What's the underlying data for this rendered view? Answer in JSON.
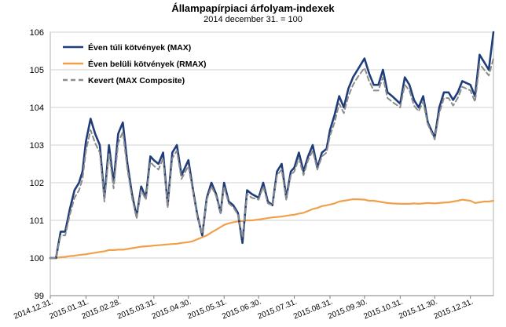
{
  "chart_data": {
    "type": "line",
    "title": "Állampapírpiaci árfolyam-indexek",
    "subtitle": "2014 december 31. = 100",
    "xlabel": "",
    "ylabel": "",
    "ylim": [
      99,
      106
    ],
    "y_ticks": [
      "99",
      "100",
      "101",
      "102",
      "103",
      "104",
      "105",
      "106"
    ],
    "x_ticks": [
      "2014.12.31.",
      "2015.01.31.",
      "2015.02.28.",
      "2015.03.31.",
      "2015.04.30.",
      "2015.05.31.",
      "2015.06.30.",
      "2015.07.31.",
      "2015.08.31.",
      "2015.09.30.",
      "2015.10.31.",
      "2015.11.30.",
      "2015.12.31."
    ],
    "grid": true,
    "legend_position": "top-left",
    "x_index": [
      "2014-12-31",
      "2015-01-05",
      "2015-01-09",
      "2015-01-13",
      "2015-01-17",
      "2015-01-21",
      "2015-01-25",
      "2015-01-28",
      "2015-01-31",
      "2015-02-04",
      "2015-02-08",
      "2015-02-12",
      "2015-02-16",
      "2015-02-20",
      "2015-02-24",
      "2015-02-28",
      "2015-03-04",
      "2015-03-08",
      "2015-03-12",
      "2015-03-16",
      "2015-03-20",
      "2015-03-24",
      "2015-03-28",
      "2015-03-31",
      "2015-04-04",
      "2015-04-08",
      "2015-04-12",
      "2015-04-16",
      "2015-04-20",
      "2015-04-24",
      "2015-04-30",
      "2015-05-04",
      "2015-05-08",
      "2015-05-12",
      "2015-05-16",
      "2015-05-20",
      "2015-05-24",
      "2015-05-28",
      "2015-05-31",
      "2015-06-04",
      "2015-06-08",
      "2015-06-12",
      "2015-06-16",
      "2015-06-20",
      "2015-06-24",
      "2015-06-30",
      "2015-07-04",
      "2015-07-08",
      "2015-07-12",
      "2015-07-16",
      "2015-07-20",
      "2015-07-24",
      "2015-07-28",
      "2015-07-31",
      "2015-08-04",
      "2015-08-08",
      "2015-08-12",
      "2015-08-16",
      "2015-08-20",
      "2015-08-24",
      "2015-08-28",
      "2015-08-31",
      "2015-09-04",
      "2015-09-08",
      "2015-09-12",
      "2015-09-16",
      "2015-09-20",
      "2015-09-24",
      "2015-09-30",
      "2015-10-04",
      "2015-10-08",
      "2015-10-12",
      "2015-10-16",
      "2015-10-20",
      "2015-10-24",
      "2015-10-31",
      "2015-11-04",
      "2015-11-08",
      "2015-11-12",
      "2015-11-16",
      "2015-11-20",
      "2015-11-24",
      "2015-11-30",
      "2015-12-04",
      "2015-12-08",
      "2015-12-12",
      "2015-12-16",
      "2015-12-20",
      "2015-12-24",
      "2015-12-31",
      "2016-01-04",
      "2016-01-08",
      "2016-01-12",
      "2016-01-16",
      "2016-01-20"
    ],
    "series": [
      {
        "name": "Éven túli kötvények (MAX)",
        "color": "#1f3d7a",
        "dash": "solid",
        "values": [
          100.0,
          100.0,
          100.7,
          100.7,
          101.3,
          101.8,
          102.0,
          102.3,
          103.1,
          103.7,
          103.3,
          103.0,
          101.6,
          103.0,
          102.0,
          103.3,
          103.6,
          102.5,
          101.7,
          101.1,
          101.9,
          101.6,
          102.7,
          102.6,
          102.5,
          102.8,
          101.4,
          102.8,
          103.0,
          102.2,
          102.6,
          101.8,
          101.1,
          100.6,
          101.6,
          102.0,
          101.7,
          101.2,
          102.0,
          101.5,
          101.4,
          101.2,
          100.4,
          101.8,
          101.7,
          101.6,
          102.0,
          101.5,
          101.4,
          102.3,
          102.5,
          101.6,
          102.3,
          102.4,
          102.8,
          102.3,
          102.7,
          103.0,
          102.4,
          102.8,
          102.9,
          103.4,
          103.8,
          104.3,
          104.0,
          104.5,
          104.8,
          105.0,
          105.3,
          104.9,
          104.6,
          104.6,
          105.0,
          104.4,
          104.3,
          104.1,
          104.8,
          104.6,
          104.2,
          104.0,
          104.3,
          103.6,
          103.2,
          104.0,
          104.4,
          104.4,
          104.2,
          104.4,
          104.7,
          104.6,
          104.3,
          105.4,
          105.2,
          105.0,
          106.0
        ]
      },
      {
        "name": "Éven belüli kötvények (RMAX)",
        "color": "#f0a04b",
        "dash": "solid",
        "values": [
          100.0,
          100.0,
          100.02,
          100.03,
          100.05,
          100.06,
          100.08,
          100.09,
          100.1,
          100.12,
          100.14,
          100.16,
          100.18,
          100.21,
          100.21,
          100.22,
          100.22,
          100.24,
          100.26,
          100.28,
          100.3,
          100.31,
          100.32,
          100.33,
          100.34,
          100.35,
          100.36,
          100.37,
          100.38,
          100.4,
          100.42,
          100.45,
          100.5,
          100.55,
          100.6,
          100.68,
          100.75,
          100.82,
          100.88,
          100.92,
          100.95,
          100.97,
          100.98,
          101.0,
          101.0,
          101.02,
          101.04,
          101.06,
          101.08,
          101.09,
          101.1,
          101.12,
          101.14,
          101.15,
          101.18,
          101.2,
          101.25,
          101.3,
          101.33,
          101.38,
          101.4,
          101.42,
          101.45,
          101.5,
          101.52,
          101.54,
          101.56,
          101.56,
          101.55,
          101.52,
          101.52,
          101.5,
          101.48,
          101.46,
          101.45,
          101.44,
          101.44,
          101.44,
          101.45,
          101.44,
          101.45,
          101.46,
          101.45,
          101.46,
          101.47,
          101.48,
          101.5,
          101.52,
          101.55,
          101.52,
          101.46,
          101.48,
          101.5,
          101.5,
          101.52
        ]
      },
      {
        "name": "Kevert (MAX Composite)",
        "color": "#8c8c8c",
        "dash": "dashed",
        "values": [
          100.0,
          100.0,
          100.6,
          100.6,
          101.15,
          101.6,
          101.8,
          102.1,
          102.85,
          103.4,
          103.05,
          102.8,
          101.5,
          102.8,
          101.85,
          103.05,
          103.35,
          102.35,
          101.6,
          101.05,
          101.8,
          101.55,
          102.55,
          102.45,
          102.35,
          102.65,
          101.35,
          102.65,
          102.85,
          102.1,
          102.45,
          101.75,
          101.05,
          100.65,
          101.55,
          101.9,
          101.65,
          101.2,
          101.9,
          101.45,
          101.35,
          101.15,
          100.55,
          101.7,
          101.6,
          101.55,
          101.9,
          101.45,
          101.4,
          102.2,
          102.35,
          101.55,
          102.2,
          102.3,
          102.65,
          102.2,
          102.6,
          102.85,
          102.35,
          102.7,
          102.8,
          103.25,
          103.6,
          104.1,
          103.85,
          104.3,
          104.6,
          104.8,
          105.05,
          104.7,
          104.45,
          104.45,
          104.8,
          104.25,
          104.15,
          104.0,
          104.6,
          104.45,
          104.05,
          103.9,
          104.15,
          103.55,
          103.15,
          103.85,
          104.25,
          104.25,
          104.05,
          104.25,
          104.55,
          104.45,
          104.15,
          105.15,
          105.0,
          104.85,
          105.3
        ]
      }
    ]
  }
}
